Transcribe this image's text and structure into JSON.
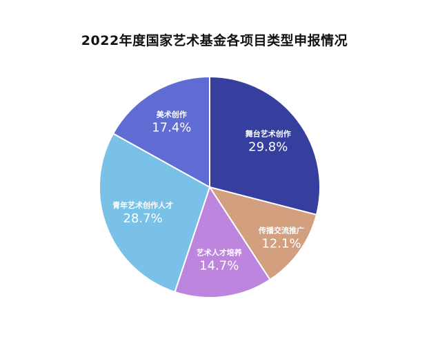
{
  "chart_data": {
    "type": "pie",
    "title": "2022年度国家艺术基金各项目类型申报情况",
    "legend": "none",
    "slices": [
      {
        "name": "舞台艺术创作",
        "value": 29.8,
        "label": "29.8%",
        "color": "#363F9D"
      },
      {
        "name": "传播交流推广",
        "value": 12.1,
        "label": "12.1%",
        "color": "#D29F7F"
      },
      {
        "name": "艺术人才培养",
        "value": 14.7,
        "label": "14.7%",
        "color": "#BE85DE"
      },
      {
        "name": "青年艺术创作人才",
        "value": 28.7,
        "label": "28.7%",
        "color": "#79C1E6"
      },
      {
        "name": "美术创作",
        "value": 17.4,
        "label": "17.4%",
        "color": "#5E6CD4"
      }
    ]
  }
}
